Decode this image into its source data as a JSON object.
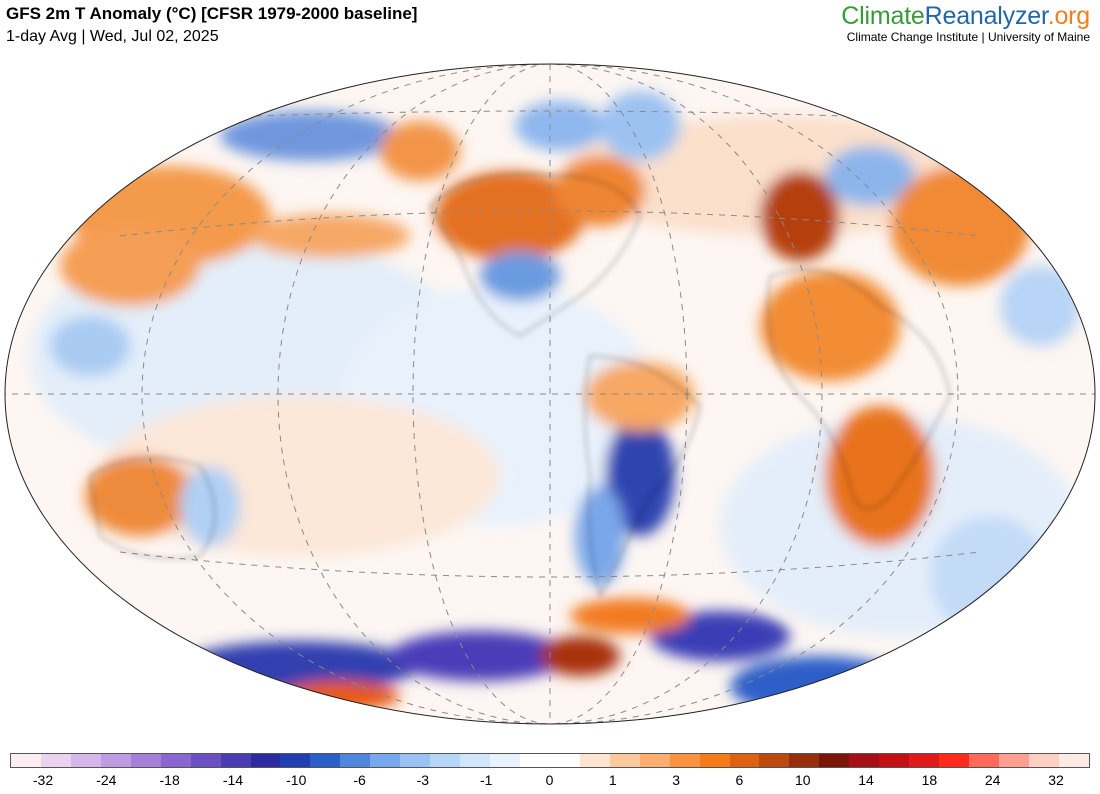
{
  "header": {
    "title": "GFS 2m T Anomaly (°C) [CFSR 1979-2000 baseline]",
    "subtitle": "1-day Avg | Wed, Jul 02, 2025"
  },
  "brand": {
    "logo_part1": "Climate",
    "logo_part2": "Reanalyzer",
    "logo_part3": ".org",
    "logo_colors": [
      "#3a9a3a",
      "#2266aa",
      "#f08020"
    ],
    "tagline": "Climate Change Institute | University of Maine"
  },
  "map": {
    "projection": "Winkel Tripel (world)",
    "graticule": "dashed",
    "background_color": "#ffffff"
  },
  "colorbar": {
    "colors": [
      "#fdeef2",
      "#e9d3ef",
      "#d5b6ea",
      "#bf9be2",
      "#a77fd9",
      "#8a66cf",
      "#6b50c3",
      "#4c3cb3",
      "#2d29a0",
      "#1f3fb0",
      "#2b5ec8",
      "#4f86dd",
      "#77a8ec",
      "#99c2f4",
      "#b6d6f8",
      "#d1e6fb",
      "#e9f3fd",
      "#ffffff",
      "#ffffff",
      "#fde4cf",
      "#fcc99d",
      "#fbae6e",
      "#f99340",
      "#f57a18",
      "#df6212",
      "#bc4a0e",
      "#962f0b",
      "#7a1507",
      "#a50f15",
      "#c40f15",
      "#e01a1a",
      "#ff2a1a",
      "#ff6a5a",
      "#ffa090",
      "#ffcfc3",
      "#ffeae6"
    ],
    "tick_labels": [
      "-32",
      "-24",
      "-18",
      "-14",
      "-10",
      "-6",
      "-3",
      "-1",
      "0",
      "1",
      "3",
      "6",
      "10",
      "14",
      "18",
      "24",
      "32"
    ],
    "units": "°C"
  }
}
